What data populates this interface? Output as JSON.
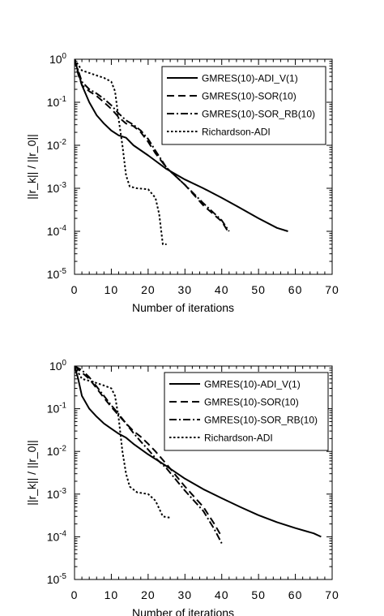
{
  "chart_data": [
    {
      "type": "line",
      "xlabel": "Number  of  iterations",
      "ylabel": "||r_k||  /  ||r_0||",
      "xlim": [
        0,
        70
      ],
      "ylim_log10": [
        -5,
        0
      ],
      "yscale": "log",
      "grid": false,
      "legend_position": "top-right",
      "xticks": [
        0,
        10,
        20,
        30,
        40,
        50,
        60,
        70
      ],
      "yticks_exp": [
        0,
        -1,
        -2,
        -3,
        -4,
        -5
      ],
      "series": [
        {
          "name": "GMRES(10)-ADI_V(1)",
          "style": "solid",
          "x": [
            0,
            2,
            4,
            6,
            8,
            10,
            12,
            14,
            16,
            20,
            25,
            30,
            35,
            40,
            45,
            50,
            55,
            58
          ],
          "y": [
            1.0,
            0.25,
            0.1,
            0.05,
            0.032,
            0.022,
            0.017,
            0.015,
            0.01,
            0.0058,
            0.0028,
            0.0016,
            0.001,
            0.0006,
            0.00035,
            0.0002,
            0.00012,
            0.0001
          ]
        },
        {
          "name": "GMRES(10)-SOR(10)",
          "style": "dash",
          "x": [
            0,
            1,
            2,
            4,
            6,
            8,
            10,
            12,
            14,
            16,
            18,
            20,
            22,
            25,
            30,
            35,
            40,
            42
          ],
          "y": [
            1.0,
            0.45,
            0.25,
            0.18,
            0.14,
            0.1,
            0.07,
            0.045,
            0.032,
            0.028,
            0.02,
            0.012,
            0.0065,
            0.003,
            0.0012,
            0.0004,
            0.00017,
            9e-05
          ]
        },
        {
          "name": "GMRES(10)-SOR_RB(10)",
          "style": "dashdot",
          "x": [
            0,
            2,
            4,
            6,
            8,
            10,
            12,
            14,
            16,
            18,
            20,
            22,
            25,
            30,
            35,
            40,
            42
          ],
          "y": [
            1.0,
            0.3,
            0.2,
            0.16,
            0.12,
            0.085,
            0.055,
            0.038,
            0.03,
            0.022,
            0.014,
            0.0075,
            0.003,
            0.0012,
            0.00045,
            0.00018,
            0.0001
          ]
        },
        {
          "name": "Richardson-ADI",
          "style": "dot",
          "x": [
            0,
            2,
            4,
            6,
            8,
            10,
            11,
            12,
            13,
            14,
            15,
            17,
            20,
            22,
            23,
            24,
            25
          ],
          "y": [
            1.0,
            0.55,
            0.48,
            0.42,
            0.37,
            0.3,
            0.18,
            0.04,
            0.01,
            0.002,
            0.0011,
            0.001,
            0.00095,
            0.0006,
            0.00025,
            5e-05,
            5e-05
          ]
        }
      ]
    },
    {
      "type": "line",
      "xlabel": "Number  of  iterations",
      "ylabel": "||r_k||  /  ||r_0||",
      "xlim": [
        0,
        70
      ],
      "ylim_log10": [
        -5,
        0
      ],
      "yscale": "log",
      "grid": false,
      "legend_position": "top-right",
      "xticks": [
        0,
        10,
        20,
        30,
        40,
        50,
        60,
        70
      ],
      "yticks_exp": [
        0,
        -1,
        -2,
        -3,
        -4,
        -5
      ],
      "series": [
        {
          "name": "GMRES(10)-ADI_V(1)",
          "style": "solid",
          "x": [
            0,
            1,
            2,
            4,
            6,
            8,
            10,
            12,
            14,
            16,
            20,
            25,
            30,
            35,
            40,
            45,
            50,
            55,
            60,
            65,
            67
          ],
          "y": [
            1.0,
            0.5,
            0.2,
            0.1,
            0.065,
            0.045,
            0.034,
            0.026,
            0.021,
            0.015,
            0.0085,
            0.0045,
            0.0023,
            0.0013,
            0.0008,
            0.0005,
            0.00032,
            0.00022,
            0.00016,
            0.00012,
            0.0001
          ]
        },
        {
          "name": "GMRES(10)-SOR(10)",
          "style": "dash",
          "x": [
            0,
            2,
            4,
            6,
            8,
            10,
            12,
            14,
            16,
            18,
            20,
            22,
            25,
            30,
            35,
            38,
            40
          ],
          "y": [
            1.0,
            0.7,
            0.5,
            0.3,
            0.18,
            0.11,
            0.07,
            0.045,
            0.03,
            0.022,
            0.015,
            0.01,
            0.005,
            0.0015,
            0.0005,
            0.0002,
            0.0001
          ]
        },
        {
          "name": "GMRES(10)-SOR_RB(10)",
          "style": "dashdot",
          "x": [
            0,
            2,
            4,
            6,
            8,
            10,
            12,
            14,
            16,
            18,
            20,
            22,
            25,
            30,
            35,
            38,
            40
          ],
          "y": [
            1.0,
            0.8,
            0.55,
            0.33,
            0.2,
            0.12,
            0.075,
            0.045,
            0.027,
            0.017,
            0.011,
            0.007,
            0.004,
            0.0012,
            0.0004,
            0.00015,
            7e-05
          ]
        },
        {
          "name": "Richardson-ADI",
          "style": "dot",
          "x": [
            0,
            2,
            4,
            6,
            8,
            10,
            11,
            12,
            13,
            14,
            15,
            17,
            20,
            22,
            24,
            26
          ],
          "y": [
            1.0,
            0.5,
            0.45,
            0.4,
            0.35,
            0.3,
            0.2,
            0.06,
            0.01,
            0.003,
            0.0015,
            0.0011,
            0.001,
            0.0007,
            0.0003,
            0.00028
          ]
        }
      ]
    }
  ]
}
